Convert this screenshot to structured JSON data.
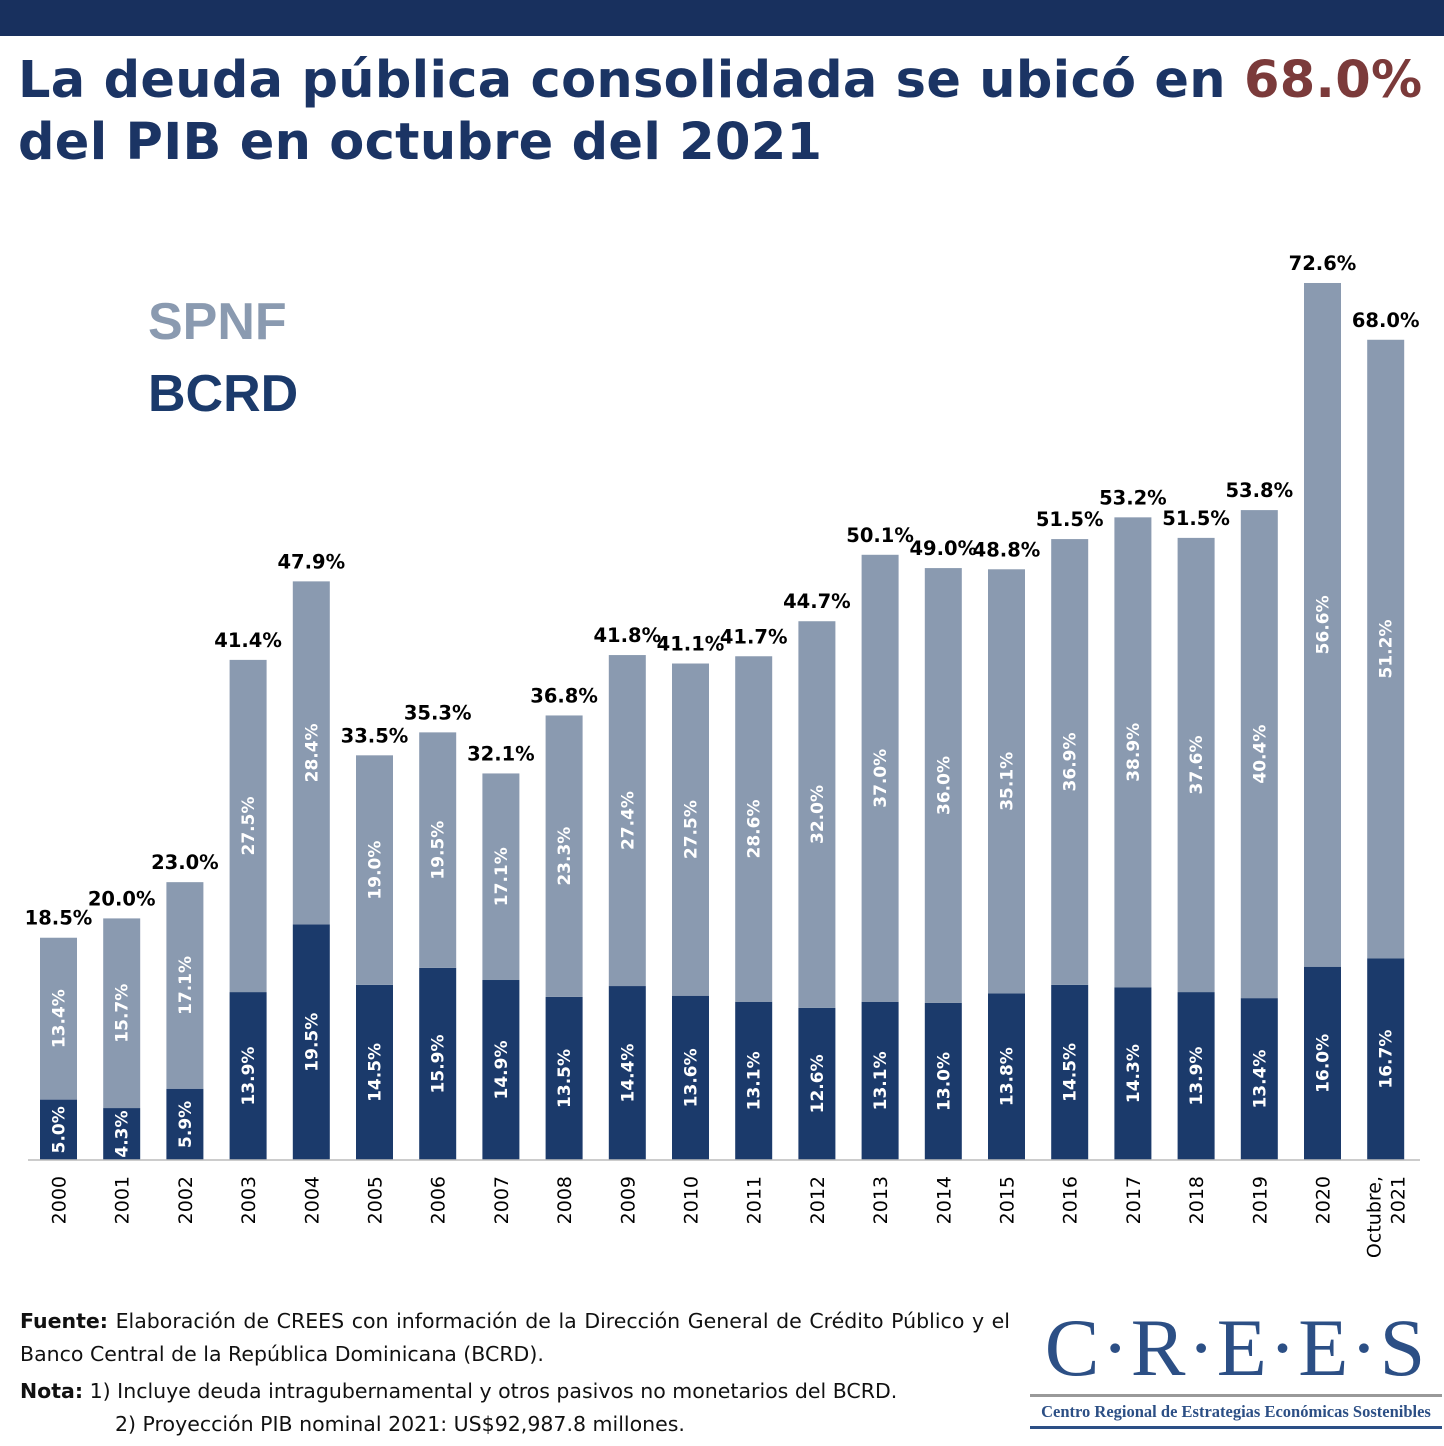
{
  "title": {
    "part1": "La deuda pública consolidada se ubicó en ",
    "highlight": "68.0%",
    "part2": "del PIB en octubre del 2021"
  },
  "colors": {
    "header": "#18305e",
    "title": "#1b3464",
    "highlight": "#7b3a3a",
    "spnf": "#8a9ab0",
    "bcrd": "#1b3a6b"
  },
  "chart_data": {
    "type": "bar",
    "stacked": true,
    "categories": [
      "2000",
      "2001",
      "2002",
      "2003",
      "2004",
      "2005",
      "2006",
      "2007",
      "2008",
      "2009",
      "2010",
      "2011",
      "2012",
      "2013",
      "2014",
      "2015",
      "2016",
      "2017",
      "2018",
      "2019",
      "2020",
      "Octubre,\n2021"
    ],
    "series": [
      {
        "name": "BCRD",
        "color": "#1b3a6b",
        "values": [
          5.0,
          4.3,
          5.9,
          13.9,
          19.5,
          14.5,
          15.9,
          14.9,
          13.5,
          14.4,
          13.6,
          13.1,
          12.6,
          13.1,
          13.0,
          13.8,
          14.5,
          14.3,
          13.9,
          13.4,
          16.0,
          16.7
        ]
      },
      {
        "name": "SPNF",
        "color": "#8a9ab0",
        "values": [
          13.4,
          15.7,
          17.1,
          27.5,
          28.4,
          19.0,
          19.5,
          17.1,
          23.3,
          27.4,
          27.5,
          28.6,
          32.0,
          37.0,
          36.0,
          35.1,
          36.9,
          38.9,
          37.6,
          40.4,
          56.6,
          51.2
        ]
      }
    ],
    "totals": [
      18.5,
      20.0,
      23.0,
      41.4,
      47.9,
      33.5,
      35.3,
      32.1,
      36.8,
      41.8,
      41.1,
      41.7,
      44.7,
      50.1,
      49.0,
      48.8,
      51.5,
      53.2,
      51.5,
      53.8,
      72.6,
      68.0
    ],
    "unit": "%",
    "ylim": [
      0,
      75
    ],
    "grid": false,
    "legend_placement": "top-left"
  },
  "legend": {
    "spnf": "SPNF",
    "bcrd": "BCRD"
  },
  "footer": {
    "fuente_label": "Fuente:",
    "fuente_text": " Elaboración de CREES con información de la Dirección General de Crédito Público y el Banco Central de la República Dominicana (BCRD).",
    "nota_label": "Nota:",
    "nota1": " 1) Incluye deuda intragubernamental y otros pasivos no monetarios del BCRD.",
    "nota2": "2) Proyección PIB nominal 2021: US$92,987.8 millones."
  },
  "logo": {
    "name": "C·R·E·E·S",
    "subtitle": "Centro Regional de Estrategias Económicas Sostenibles"
  }
}
